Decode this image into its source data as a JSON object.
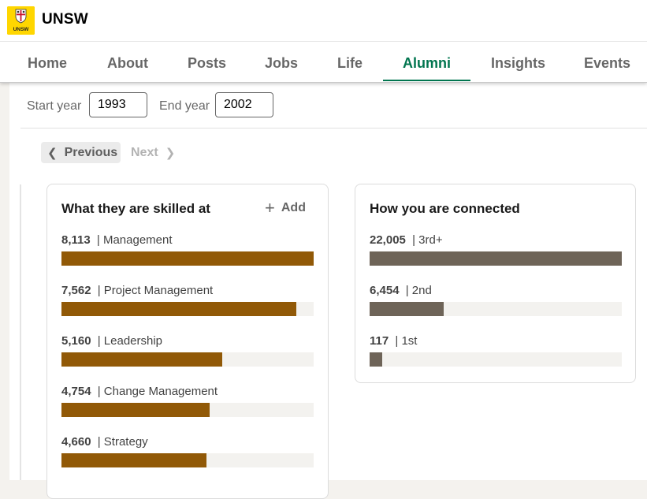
{
  "header": {
    "org_name": "UNSW",
    "logo_text": "UNSW",
    "logo_color": "#ffd600",
    "tabs": [
      {
        "label": "Home",
        "active": false
      },
      {
        "label": "About",
        "active": false
      },
      {
        "label": "Posts",
        "active": false
      },
      {
        "label": "Jobs",
        "active": false
      },
      {
        "label": "Life",
        "active": false
      },
      {
        "label": "Alumni",
        "active": true
      },
      {
        "label": "Insights",
        "active": false
      },
      {
        "label": "Events",
        "active": false
      }
    ],
    "active_color": "#01754f"
  },
  "filters": {
    "start_label": "Start year",
    "start_value": "1993",
    "end_label": "End year",
    "end_value": "2002"
  },
  "pagination": {
    "previous_label": "Previous",
    "next_label": "Next",
    "next_enabled": false
  },
  "skills": {
    "title": "What they are skilled at",
    "add_label": "Add",
    "bar_color": "#915907",
    "items": [
      {
        "count": "8,113",
        "label": "Management",
        "value": 8113
      },
      {
        "count": "7,562",
        "label": "Project Management",
        "value": 7562
      },
      {
        "count": "5,160",
        "label": "Leadership",
        "value": 5160
      },
      {
        "count": "4,754",
        "label": "Change Management",
        "value": 4754
      },
      {
        "count": "4,660",
        "label": "Strategy",
        "value": 4660
      }
    ]
  },
  "connections": {
    "title": "How you are connected",
    "bar_color": "#6e6458",
    "items": [
      {
        "count": "22,005",
        "label": "3rd+",
        "value": 22005
      },
      {
        "count": "6,454",
        "label": "2nd",
        "value": 6454
      },
      {
        "count": "117",
        "label": "1st",
        "value": 117
      }
    ]
  }
}
